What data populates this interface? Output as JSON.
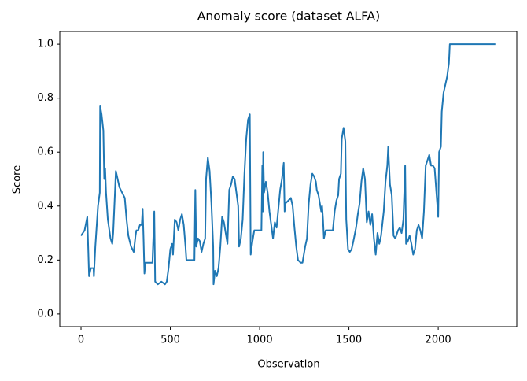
{
  "chart_data": {
    "type": "line",
    "title": "Anomaly score (dataset ALFA)",
    "xlabel": "Observation",
    "ylabel": "Score",
    "x": [
      0,
      20,
      35,
      45,
      55,
      70,
      72,
      80,
      95,
      105,
      107,
      115,
      125,
      130,
      135,
      140,
      150,
      165,
      175,
      180,
      190,
      195,
      205,
      215,
      230,
      245,
      255,
      265,
      280,
      295,
      305,
      310,
      320,
      330,
      340,
      345,
      350,
      355,
      360,
      380,
      400,
      410,
      415,
      430,
      450,
      470,
      480,
      490,
      500,
      510,
      515,
      525,
      535,
      545,
      555,
      565,
      575,
      585,
      590,
      600,
      620,
      635,
      640,
      645,
      655,
      665,
      675,
      685,
      695,
      700,
      710,
      720,
      730,
      740,
      742,
      750,
      760,
      770,
      780,
      790,
      800,
      810,
      820,
      830,
      840,
      850,
      860,
      870,
      880,
      885,
      895,
      905,
      915,
      925,
      935,
      945,
      950,
      960,
      970,
      980,
      1000,
      1010,
      1015,
      1018,
      1020,
      1025,
      1035,
      1045,
      1055,
      1065,
      1075,
      1085,
      1095,
      1105,
      1115,
      1125,
      1135,
      1140,
      1145,
      1160,
      1175,
      1185,
      1195,
      1205,
      1215,
      1230,
      1240,
      1255,
      1265,
      1275,
      1285,
      1295,
      1305,
      1315,
      1320,
      1330,
      1335,
      1345,
      1350,
      1355,
      1360,
      1370,
      1400,
      1410,
      1420,
      1430,
      1440,
      1445,
      1455,
      1460,
      1470,
      1480,
      1485,
      1495,
      1505,
      1515,
      1525,
      1540,
      1550,
      1560,
      1570,
      1580,
      1590,
      1600,
      1610,
      1620,
      1630,
      1640,
      1650,
      1660,
      1670,
      1680,
      1695,
      1705,
      1715,
      1720,
      1730,
      1740,
      1750,
      1760,
      1775,
      1785,
      1795,
      1805,
      1815,
      1820,
      1830,
      1840,
      1850,
      1860,
      1870,
      1880,
      1890,
      1900,
      1910,
      1920,
      1930,
      1940,
      1950,
      1960,
      1970,
      1980,
      1990,
      2000,
      2005,
      2015,
      2020,
      2030,
      2040,
      2050,
      2060,
      2065,
      2100,
      2200,
      2320
    ],
    "series": [
      {
        "color": "#1f77b4",
        "values": [
          0.29,
          0.31,
          0.36,
          0.14,
          0.17,
          0.17,
          0.14,
          0.25,
          0.4,
          0.45,
          0.77,
          0.74,
          0.68,
          0.5,
          0.54,
          0.45,
          0.35,
          0.28,
          0.26,
          0.3,
          0.45,
          0.53,
          0.5,
          0.47,
          0.45,
          0.43,
          0.35,
          0.29,
          0.25,
          0.23,
          0.29,
          0.31,
          0.31,
          0.33,
          0.33,
          0.39,
          0.28,
          0.15,
          0.19,
          0.19,
          0.19,
          0.38,
          0.12,
          0.11,
          0.12,
          0.11,
          0.12,
          0.17,
          0.24,
          0.26,
          0.22,
          0.35,
          0.34,
          0.31,
          0.35,
          0.37,
          0.33,
          0.25,
          0.2,
          0.2,
          0.2,
          0.2,
          0.46,
          0.25,
          0.28,
          0.27,
          0.23,
          0.26,
          0.28,
          0.5,
          0.58,
          0.53,
          0.41,
          0.25,
          0.11,
          0.16,
          0.14,
          0.17,
          0.25,
          0.36,
          0.34,
          0.3,
          0.26,
          0.46,
          0.48,
          0.51,
          0.5,
          0.45,
          0.4,
          0.25,
          0.28,
          0.35,
          0.52,
          0.65,
          0.72,
          0.74,
          0.22,
          0.27,
          0.31,
          0.31,
          0.31,
          0.31,
          0.55,
          0.38,
          0.6,
          0.45,
          0.49,
          0.45,
          0.38,
          0.33,
          0.28,
          0.34,
          0.32,
          0.39,
          0.46,
          0.5,
          0.56,
          0.38,
          0.41,
          0.42,
          0.43,
          0.4,
          0.32,
          0.25,
          0.2,
          0.19,
          0.19,
          0.25,
          0.28,
          0.41,
          0.48,
          0.52,
          0.51,
          0.49,
          0.46,
          0.44,
          0.42,
          0.38,
          0.4,
          0.35,
          0.28,
          0.31,
          0.31,
          0.31,
          0.38,
          0.42,
          0.44,
          0.5,
          0.52,
          0.65,
          0.69,
          0.64,
          0.35,
          0.24,
          0.23,
          0.24,
          0.27,
          0.32,
          0.37,
          0.41,
          0.49,
          0.54,
          0.5,
          0.34,
          0.38,
          0.33,
          0.37,
          0.28,
          0.22,
          0.3,
          0.26,
          0.29,
          0.38,
          0.49,
          0.55,
          0.62,
          0.48,
          0.44,
          0.29,
          0.28,
          0.31,
          0.32,
          0.3,
          0.35,
          0.55,
          0.26,
          0.27,
          0.29,
          0.26,
          0.22,
          0.24,
          0.31,
          0.33,
          0.31,
          0.28,
          0.38,
          0.55,
          0.57,
          0.59,
          0.55,
          0.55,
          0.54,
          0.45,
          0.36,
          0.6,
          0.62,
          0.75,
          0.82,
          0.85,
          0.88,
          0.93,
          1.0,
          1.0,
          1.0,
          1.0
        ]
      }
    ],
    "xlim": [
      -119,
      2440
    ],
    "ylim": [
      -0.047,
      1.047
    ],
    "xticks": [
      0,
      500,
      1000,
      1500,
      2000
    ],
    "yticks": [
      {
        "value": 0,
        "label": "0.0"
      },
      0.2,
      0.4,
      0.6,
      0.8,
      {
        "value": 1,
        "label": "1.0"
      }
    ]
  }
}
